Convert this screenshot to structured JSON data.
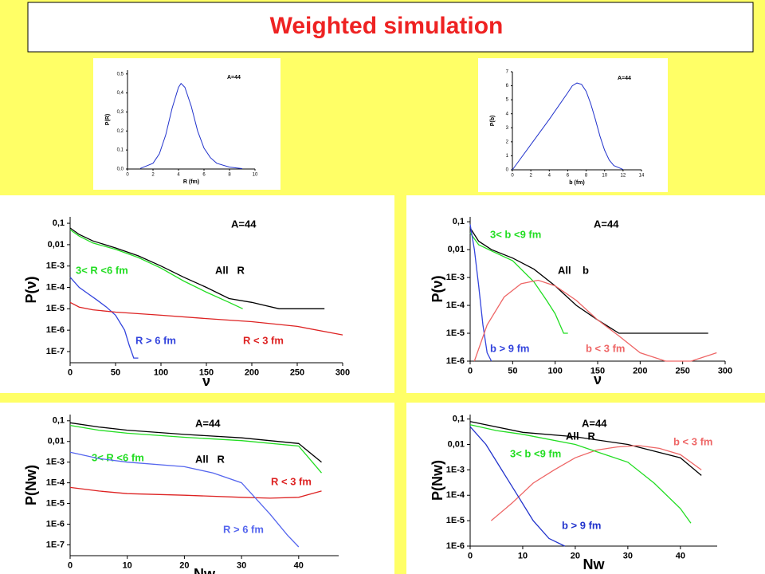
{
  "title": "Weighted simulation",
  "chart_data": [
    {
      "type": "line",
      "annotation": "A=44",
      "xlabel": "R (fm)",
      "ylabel": "P(R)",
      "xlim": [
        0,
        10
      ],
      "xticks": [
        0,
        2,
        4,
        6,
        8,
        10
      ],
      "ylim": [
        0,
        0.52
      ],
      "yticks": [
        {
          "value": 0,
          "label": "0,0"
        },
        {
          "value": 0.1,
          "label": "0,1"
        },
        {
          "value": 0.2,
          "label": "0,2"
        },
        {
          "value": 0.3,
          "label": "0,3"
        },
        {
          "value": 0.4,
          "label": "0,4"
        },
        {
          "value": 0.5,
          "label": "0,5"
        }
      ],
      "series": [
        {
          "name": null,
          "color": "#2233cc",
          "x": [
            1,
            2,
            2.5,
            3,
            3.5,
            4,
            4.2,
            4.5,
            5,
            5.5,
            6,
            6.5,
            7,
            8,
            9
          ],
          "values": [
            0.003,
            0.03,
            0.08,
            0.18,
            0.32,
            0.43,
            0.45,
            0.43,
            0.33,
            0.2,
            0.11,
            0.06,
            0.03,
            0.01,
            0.002
          ]
        }
      ]
    },
    {
      "type": "line",
      "annotation": "A=44",
      "xlabel": "b (fm)",
      "ylabel": "P(b)",
      "xlim": [
        0,
        14
      ],
      "xticks": [
        0,
        2,
        4,
        6,
        8,
        10,
        12,
        14
      ],
      "ylim": [
        0,
        7
      ],
      "yticks": [
        0,
        1,
        2,
        3,
        4,
        5,
        6,
        7
      ],
      "series": [
        {
          "name": null,
          "color": "#2233cc",
          "x": [
            0,
            2,
            4,
            6,
            6.5,
            7,
            7.5,
            8,
            8.5,
            9,
            9.5,
            10,
            10.5,
            11,
            12
          ],
          "values": [
            0,
            1.8,
            3.6,
            5.5,
            6,
            6.2,
            6.1,
            5.6,
            4.7,
            3.6,
            2.4,
            1.4,
            0.7,
            0.3,
            0.02
          ]
        }
      ]
    },
    {
      "type": "line",
      "log": true,
      "annotation": "A=44",
      "xlabel": "ν",
      "ylabel": "P(ν)",
      "xlim": [
        0,
        300
      ],
      "xticks": [
        0,
        50,
        100,
        150,
        200,
        250,
        300
      ],
      "ylim": [
        3e-08,
        0.2
      ],
      "yticks": [
        {
          "value": 0.1,
          "label": "0,1"
        },
        {
          "value": 0.01,
          "label": "0,01"
        },
        {
          "value": 0.001,
          "label": "1E-3"
        },
        {
          "value": 0.0001,
          "label": "1E-4"
        },
        {
          "value": 1e-05,
          "label": "1E-5"
        },
        {
          "value": 1e-06,
          "label": "1E-6"
        },
        {
          "value": 1e-07,
          "label": "1E-7"
        }
      ],
      "series": [
        {
          "name": "All   R",
          "color": "#000000",
          "x": [
            0,
            10,
            25,
            50,
            75,
            100,
            125,
            150,
            175,
            200,
            230,
            280
          ],
          "values": [
            0.06,
            0.03,
            0.015,
            0.007,
            0.003,
            0.001,
            0.0003,
            0.0001,
            3e-05,
            2e-05,
            1e-05,
            1e-05
          ]
        },
        {
          "name": "3< R <6 fm",
          "color": "#22dd22",
          "x": [
            0,
            10,
            25,
            50,
            75,
            100,
            125,
            150,
            175,
            190
          ],
          "values": [
            0.05,
            0.025,
            0.012,
            0.006,
            0.0025,
            0.0008,
            0.0002,
            6e-05,
            2e-05,
            1e-05
          ]
        },
        {
          "name": "R > 6 fm",
          "color": "#3344dd",
          "x": [
            0,
            10,
            20,
            30,
            40,
            50,
            60,
            65,
            70,
            75
          ],
          "values": [
            0.0003,
            0.0001,
            5e-05,
            2.5e-05,
            1.2e-05,
            5e-06,
            1e-06,
            2e-07,
            5e-08,
            5e-08
          ]
        },
        {
          "name": "R < 3 fm",
          "color": "#dd2222",
          "x": [
            0,
            10,
            25,
            50,
            100,
            150,
            200,
            250,
            300
          ],
          "values": [
            2e-05,
            1.2e-05,
            9e-06,
            7e-06,
            5e-06,
            3.5e-06,
            2.5e-06,
            1.5e-06,
            6e-07
          ]
        }
      ]
    },
    {
      "type": "line",
      "log": true,
      "annotation": "A=44",
      "xlabel": "ν",
      "ylabel": "P(ν)",
      "xlim": [
        0,
        300
      ],
      "xticks": [
        0,
        50,
        100,
        150,
        200,
        250,
        300
      ],
      "ylim": [
        1e-06,
        0.15
      ],
      "yticks": [
        {
          "value": 0.1,
          "label": "0,1"
        },
        {
          "value": 0.01,
          "label": "0,01"
        },
        {
          "value": 0.001,
          "label": "1E-3"
        },
        {
          "value": 0.0001,
          "label": "1E-4"
        },
        {
          "value": 1e-05,
          "label": "1E-5"
        },
        {
          "value": 1e-06,
          "label": "1E-6"
        }
      ],
      "series": [
        {
          "name": "3< b <9 fm",
          "color": "#22dd22",
          "x": [
            0,
            10,
            25,
            50,
            75,
            90,
            100,
            110,
            115
          ],
          "values": [
            0.04,
            0.015,
            0.009,
            0.004,
            0.0007,
            0.00015,
            5e-05,
            1e-05,
            1e-05
          ]
        },
        {
          "name": "All    b",
          "color": "#000000",
          "x": [
            0,
            10,
            25,
            50,
            75,
            100,
            125,
            150,
            175,
            200,
            230,
            280
          ],
          "values": [
            0.06,
            0.02,
            0.01,
            0.005,
            0.002,
            0.0005,
            0.0001,
            3e-05,
            1e-05,
            1e-05,
            1e-05,
            1e-05
          ]
        },
        {
          "name": "b > 9 fm",
          "color": "#3344dd",
          "x": [
            0,
            5,
            10,
            15,
            20,
            25
          ],
          "values": [
            0.08,
            0.01,
            0.0005,
            2e-05,
            2e-06,
            1e-06
          ]
        },
        {
          "name": "b < 3 fm",
          "color": "#ee6666",
          "x": [
            5,
            20,
            40,
            60,
            80,
            100,
            125,
            150,
            175,
            200,
            230,
            260,
            290
          ],
          "values": [
            1e-06,
            2e-05,
            0.0002,
            0.0006,
            0.0008,
            0.0005,
            0.00015,
            3e-05,
            8e-06,
            2e-06,
            1e-06,
            1e-06,
            2e-06
          ]
        }
      ]
    },
    {
      "type": "line",
      "log": true,
      "annotation": "A=44",
      "xlabel": "Nw",
      "ylabel": "P(Nw)",
      "xlim": [
        0,
        47
      ],
      "xticks": [
        0,
        10,
        20,
        30,
        40
      ],
      "ylim": [
        3e-08,
        0.2
      ],
      "yticks": [
        {
          "value": 0.1,
          "label": "0,1"
        },
        {
          "value": 0.01,
          "label": "0,01"
        },
        {
          "value": 0.001,
          "label": "1E-3"
        },
        {
          "value": 0.0001,
          "label": "1E-4"
        },
        {
          "value": 1e-05,
          "label": "1E-5"
        },
        {
          "value": 1e-06,
          "label": "1E-6"
        },
        {
          "value": 1e-07,
          "label": "1E-7"
        }
      ],
      "series": [
        {
          "name": "3< R <6 fm",
          "color": "#22dd22",
          "x": [
            0,
            5,
            10,
            20,
            30,
            40,
            44
          ],
          "values": [
            0.06,
            0.035,
            0.025,
            0.016,
            0.011,
            0.006,
            0.0003
          ]
        },
        {
          "name": "All   R",
          "color": "#000000",
          "x": [
            0,
            5,
            10,
            20,
            30,
            40,
            44
          ],
          "values": [
            0.08,
            0.05,
            0.035,
            0.022,
            0.015,
            0.008,
            0.001
          ]
        },
        {
          "name": "R < 3 fm",
          "color": "#dd2222",
          "x": [
            0,
            5,
            10,
            20,
            30,
            35,
            40,
            44
          ],
          "values": [
            6e-05,
            4e-05,
            3e-05,
            2.5e-05,
            2e-05,
            1.8e-05,
            2e-05,
            4e-05
          ]
        },
        {
          "name": "R > 6 fm",
          "color": "#5566ee",
          "x": [
            0,
            5,
            10,
            20,
            25,
            30,
            35,
            38,
            40
          ],
          "values": [
            0.003,
            0.0015,
            0.001,
            0.0006,
            0.0003,
            0.0001,
            3e-06,
            3e-07,
            8e-08
          ]
        }
      ]
    },
    {
      "type": "line",
      "log": true,
      "annotation": "A=44",
      "xlabel": "Nw",
      "ylabel": "P(Nw)",
      "xlim": [
        0,
        47
      ],
      "xticks": [
        0,
        10,
        20,
        30,
        40
      ],
      "ylim": [
        1e-06,
        0.15
      ],
      "yticks": [
        {
          "value": 0.1,
          "label": "0,1"
        },
        {
          "value": 0.01,
          "label": "0,01"
        },
        {
          "value": 0.001,
          "label": "1E-3"
        },
        {
          "value": 0.0001,
          "label": "1E-4"
        },
        {
          "value": 1e-05,
          "label": "1E-5"
        },
        {
          "value": 1e-06,
          "label": "1E-6"
        }
      ],
      "series": [
        {
          "name": "All   R",
          "color": "#000000",
          "x": [
            0,
            10,
            20,
            30,
            40,
            44
          ],
          "values": [
            0.08,
            0.03,
            0.02,
            0.01,
            0.003,
            0.0006
          ]
        },
        {
          "name": "b < 3 fm",
          "color": "#ee6666",
          "x": [
            4,
            8,
            12,
            16,
            20,
            24,
            28,
            32,
            36,
            40,
            44
          ],
          "values": [
            1e-05,
            5e-05,
            0.0003,
            0.001,
            0.003,
            0.006,
            0.008,
            0.009,
            0.007,
            0.004,
            0.001
          ]
        },
        {
          "name": "3< b <9 fm",
          "color": "#22dd22",
          "x": [
            0,
            5,
            10,
            20,
            30,
            35,
            40,
            42
          ],
          "values": [
            0.06,
            0.035,
            0.025,
            0.01,
            0.002,
            0.0003,
            3e-05,
            8e-06
          ]
        },
        {
          "name": "b > 9 fm",
          "color": "#2233cc",
          "x": [
            0,
            3,
            6,
            9,
            12,
            15,
            18
          ],
          "values": [
            0.05,
            0.01,
            0.001,
            0.0001,
            1e-05,
            2e-06,
            1e-06
          ]
        }
      ]
    }
  ]
}
